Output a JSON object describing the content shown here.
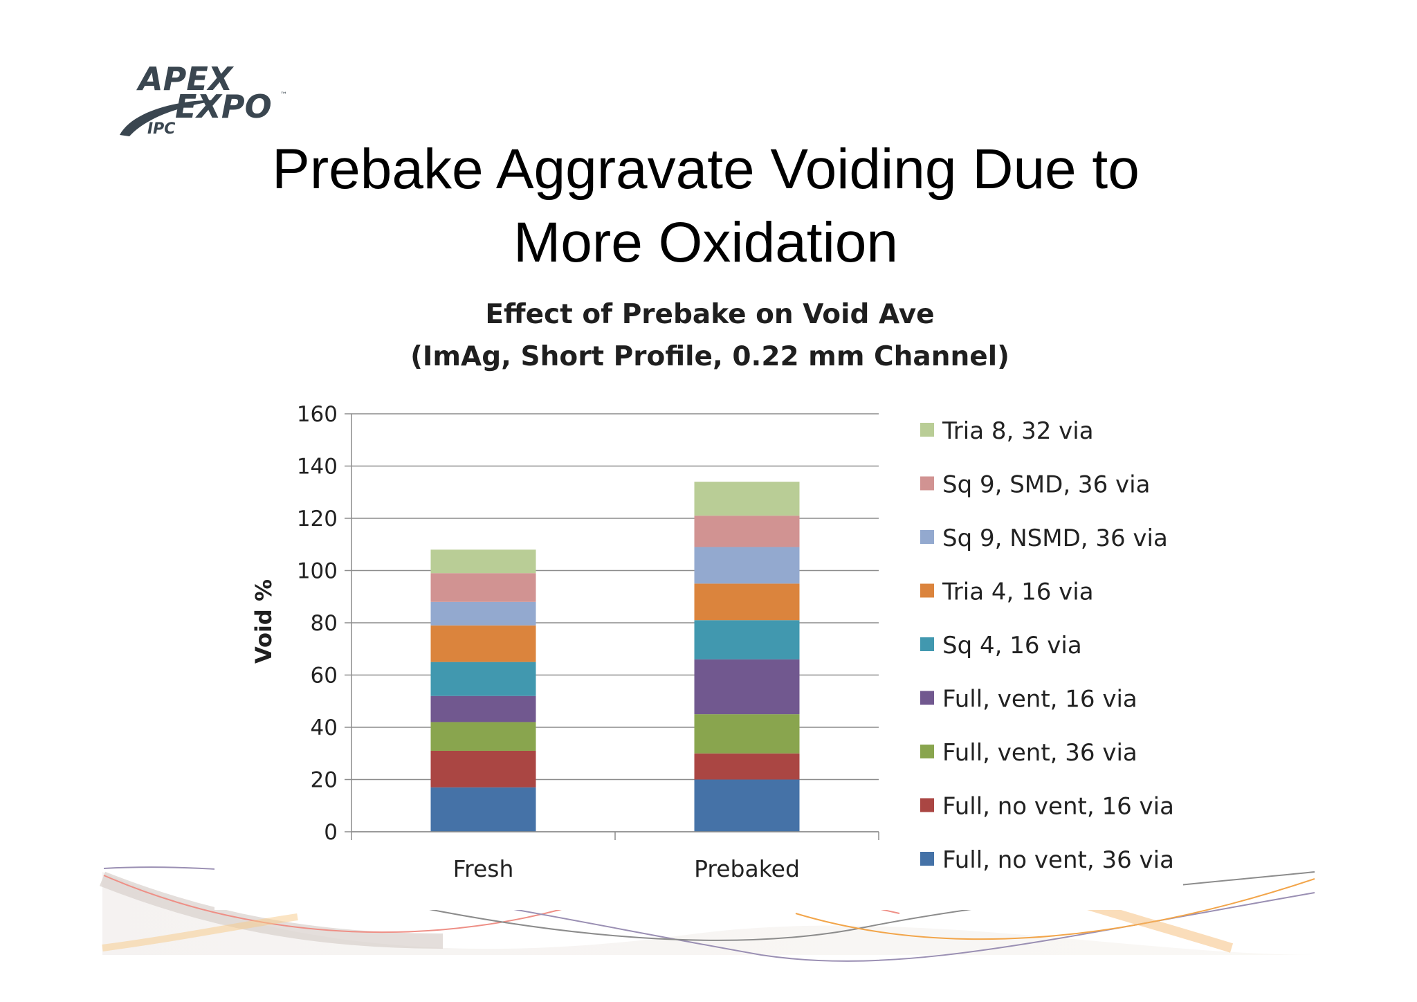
{
  "slide": {
    "title_line1": "Prebake Aggravate Voiding Due to",
    "title_line2": "More Oxidation",
    "logo": {
      "line1": "APEX",
      "line2": "EXPO",
      "tm": "™",
      "badge": "IPC"
    }
  },
  "chart_data": {
    "type": "bar",
    "stacked": true,
    "title_line1": "Effect of Prebake on Void Ave",
    "title_line2": "(ImAg, Short Profile, 0.22 mm Channel)",
    "xlabel": "",
    "ylabel": "Void %",
    "ylim": [
      0,
      160
    ],
    "yticks": [
      0,
      20,
      40,
      60,
      80,
      100,
      120,
      140,
      160
    ],
    "grid": true,
    "legend_position": "right",
    "categories": [
      "Fresh",
      "Prebaked"
    ],
    "series": [
      {
        "name": "Full, no vent, 36 via",
        "color": "#4572A7",
        "values": [
          17,
          20
        ]
      },
      {
        "name": "Full, no vent, 16 via",
        "color": "#AA4643",
        "values": [
          14,
          10
        ]
      },
      {
        "name": "Full, vent, 36 via",
        "color": "#89A54E",
        "values": [
          11,
          15
        ]
      },
      {
        "name": "Full, vent, 16 via",
        "color": "#71588F",
        "values": [
          10,
          21
        ]
      },
      {
        "name": "Sq 4, 16 via",
        "color": "#4198AF",
        "values": [
          13,
          15
        ]
      },
      {
        "name": "Tria 4, 16 via",
        "color": "#DB843D",
        "values": [
          14,
          14
        ]
      },
      {
        "name": "Sq 9, NSMD, 36 via",
        "color": "#93A9CF",
        "values": [
          9,
          14
        ]
      },
      {
        "name": "Sq 9, SMD, 36 via",
        "color": "#D19392",
        "values": [
          11,
          12
        ]
      },
      {
        "name": "Tria 8, 32 via",
        "color": "#B9CD96",
        "values": [
          9,
          13
        ]
      }
    ]
  }
}
